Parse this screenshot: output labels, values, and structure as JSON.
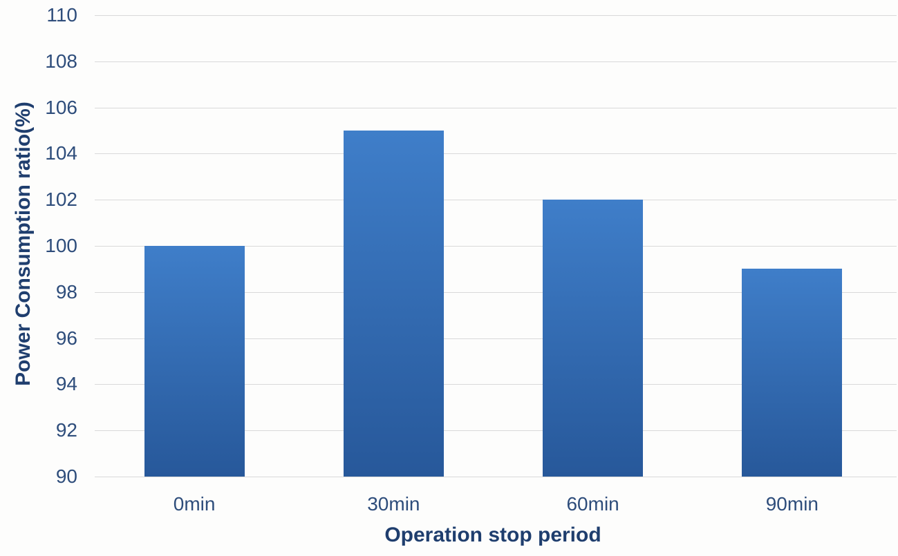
{
  "chart_data": {
    "type": "bar",
    "title": "",
    "xlabel": "Operation stop period",
    "ylabel": "Power Consumption ratio(%)",
    "categories": [
      "0min",
      "30min",
      "60min",
      "90min"
    ],
    "values": [
      100,
      105,
      102,
      99
    ],
    "ylim": [
      90,
      110
    ],
    "ytick_step": 2,
    "ytick_labels": [
      "90",
      "92",
      "94",
      "96",
      "98",
      "100",
      "102",
      "104",
      "106",
      "108",
      "110"
    ],
    "grid": true,
    "legend": "none",
    "colors": {
      "bar_gradient_top": "#3f7ec9",
      "bar_gradient_bottom": "#27589a",
      "gridline": "#d9d9d9",
      "tick_label": "#2e4d7b",
      "axis_title": "#1f3e6e",
      "background": "#fdfdfc"
    }
  }
}
